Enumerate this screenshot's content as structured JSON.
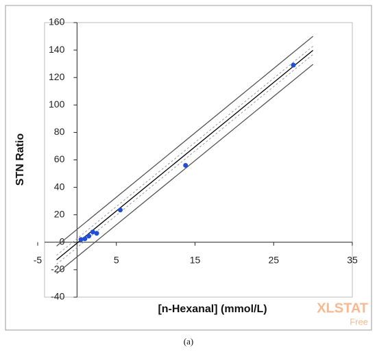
{
  "chart_data": {
    "type": "scatter",
    "x_label": "[n-Hexanal] (mmol/L)",
    "y_label": "STN Ratio",
    "xlim": [
      -5,
      35
    ],
    "ylim": [
      -40,
      160
    ],
    "xticks": [
      -5,
      5,
      15,
      25,
      35
    ],
    "yticks": [
      -40,
      -20,
      0,
      20,
      40,
      60,
      80,
      100,
      120,
      140,
      160
    ],
    "x": [
      0.5,
      1,
      1.5,
      2,
      2.5,
      5.5,
      13.8,
      27.5
    ],
    "values": [
      2,
      2.5,
      4.5,
      7.5,
      6.5,
      23.5,
      56,
      129
    ],
    "color": "#1f4fd8",
    "lines": [
      {
        "x": [
          -2.6,
          30
        ],
        "values": [
          -12.8,
          139.8
        ],
        "color": "#000000",
        "dash": false
      },
      {
        "x": [
          -2.6,
          30
        ],
        "values": [
          -9.5,
          142.8
        ],
        "color": "#9a9a9a",
        "dash": true
      },
      {
        "x": [
          -2.6,
          30
        ],
        "values": [
          -16,
          136.8
        ],
        "color": "#9a9a9a",
        "dash": true
      },
      {
        "x": [
          -2.6,
          30
        ],
        "values": [
          -2.8,
          150
        ],
        "color": "#555555",
        "dash": false
      },
      {
        "x": [
          -2.6,
          30
        ],
        "values": [
          -22.8,
          129.6
        ],
        "color": "#555555",
        "dash": false
      }
    ],
    "watermark": "XLSTAT",
    "watermark_sub": "Free",
    "caption": "(a)"
  }
}
